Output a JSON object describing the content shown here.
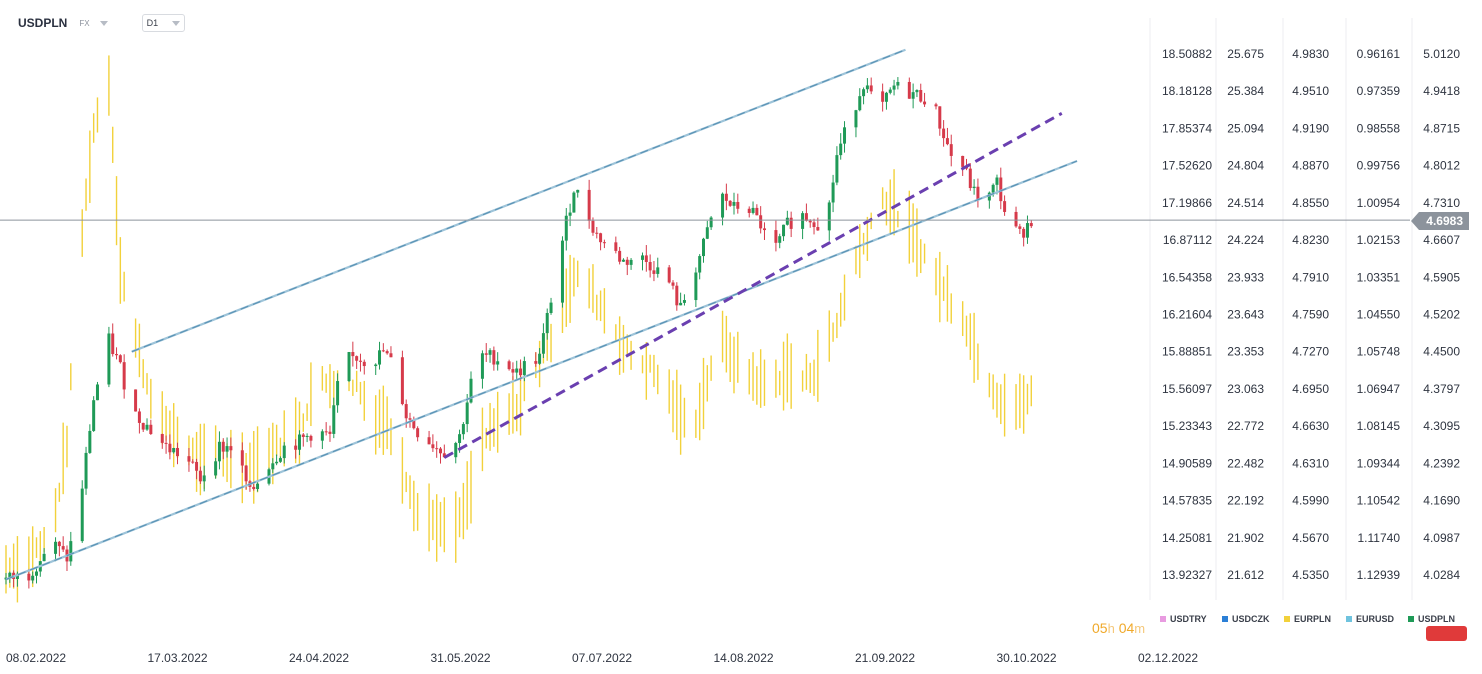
{
  "header": {
    "symbol": "USDPLN",
    "exchange": "FX",
    "timeframe": "D1"
  },
  "current_price_label": "4.6983",
  "countdown": {
    "hours": "05",
    "h": "h",
    "minutes": "04",
    "m": "m"
  },
  "legend": [
    {
      "label": "USDTRY",
      "color": "#e89be0"
    },
    {
      "label": "USDCZK",
      "color": "#2b7fd6"
    },
    {
      "label": "EURPLN",
      "color": "#f2d13b"
    },
    {
      "label": "EURUSD",
      "color": "#6fc3de"
    },
    {
      "label": "USDPLN",
      "color": "#1f9a57"
    }
  ],
  "colors": {
    "up": "#1f9a57",
    "down": "#d63a4a",
    "eurpln": "#f2d13b",
    "channel": "#5b93b5",
    "trend": "#6a3fb0",
    "current_line": "#8c939c"
  },
  "chart_data": {
    "type": "candlestick",
    "x_tick_labels": [
      "08.02.2022",
      "17.03.2022",
      "24.04.2022",
      "31.05.2022",
      "07.07.2022",
      "14.08.2022",
      "21.09.2022",
      "30.10.2022",
      "02.12.2022"
    ],
    "price_scales": [
      {
        "name": "USDTRY",
        "ticks": [
          "18.50882",
          "18.18128",
          "17.85374",
          "17.52620",
          "17.19866",
          "16.87112",
          "16.54358",
          "16.21604",
          "15.88851",
          "15.56097",
          "15.23343",
          "14.90589",
          "14.57835",
          "14.25081",
          "13.92327"
        ]
      },
      {
        "name": "USDCZK",
        "ticks": [
          "25.675",
          "25.384",
          "25.094",
          "24.804",
          "24.514",
          "24.224",
          "23.933",
          "23.643",
          "23.353",
          "23.063",
          "22.772",
          "22.482",
          "22.192",
          "21.902",
          "21.612"
        ]
      },
      {
        "name": "EURPLN",
        "ticks": [
          "4.9830",
          "4.9510",
          "4.9190",
          "4.8870",
          "4.8550",
          "4.8230",
          "4.7910",
          "4.7590",
          "4.7270",
          "4.6950",
          "4.6630",
          "4.6310",
          "4.5990",
          "4.5670",
          "4.5350"
        ]
      },
      {
        "name": "EURUSD",
        "ticks": [
          "0.96161",
          "0.97359",
          "0.98558",
          "0.99756",
          "1.00954",
          "1.02153",
          "1.03351",
          "1.04550",
          "1.05748",
          "1.06947",
          "1.08145",
          "1.09344",
          "1.10542",
          "1.11740",
          "1.12939"
        ]
      },
      {
        "name": "USDPLN",
        "ticks": [
          "5.0120",
          "4.9418",
          "4.8715",
          "4.8012",
          "4.7310",
          "4.6607",
          "4.5905",
          "4.5202",
          "4.4500",
          "4.3797",
          "4.3095",
          "4.2392",
          "4.1690",
          "4.0987",
          "4.0284"
        ]
      }
    ],
    "usdpln_ylim": [
      4.0284,
      5.012
    ],
    "eurpln_ylim": [
      4.535,
      4.983
    ],
    "current_price": 4.6983,
    "usdpln_path": [
      [
        "2022-02-08",
        4.02
      ],
      [
        "2022-02-14",
        4.03
      ],
      [
        "2022-02-20",
        4.09
      ],
      [
        "2022-02-24",
        4.06
      ],
      [
        "2022-02-27",
        4.14
      ],
      [
        "2022-03-03",
        4.36
      ],
      [
        "2022-03-07",
        4.47
      ],
      [
        "2022-03-10",
        4.42
      ],
      [
        "2022-03-13",
        4.34
      ],
      [
        "2022-03-17",
        4.31
      ],
      [
        "2022-03-22",
        4.27
      ],
      [
        "2022-03-27",
        4.25
      ],
      [
        "2022-03-31",
        4.21
      ],
      [
        "2022-04-05",
        4.27
      ],
      [
        "2022-04-09",
        4.27
      ],
      [
        "2022-04-13",
        4.18
      ],
      [
        "2022-04-17",
        4.23
      ],
      [
        "2022-04-22",
        4.27
      ],
      [
        "2022-04-26",
        4.28
      ],
      [
        "2022-04-30",
        4.3
      ],
      [
        "2022-05-04",
        4.29
      ],
      [
        "2022-05-07",
        4.43
      ],
      [
        "2022-05-11",
        4.44
      ],
      [
        "2022-05-15",
        4.43
      ],
      [
        "2022-05-18",
        4.45
      ],
      [
        "2022-05-21",
        4.42
      ],
      [
        "2022-05-24",
        4.33
      ],
      [
        "2022-05-27",
        4.3
      ],
      [
        "2022-06-01",
        4.27
      ],
      [
        "2022-06-04",
        4.26
      ],
      [
        "2022-06-07",
        4.29
      ],
      [
        "2022-06-10",
        4.39
      ],
      [
        "2022-06-13",
        4.44
      ],
      [
        "2022-06-16",
        4.44
      ],
      [
        "2022-06-19",
        4.43
      ],
      [
        "2022-06-22",
        4.41
      ],
      [
        "2022-06-25",
        4.43
      ],
      [
        "2022-06-28",
        4.44
      ],
      [
        "2022-07-01",
        4.55
      ],
      [
        "2022-07-04",
        4.66
      ],
      [
        "2022-07-07",
        4.76
      ],
      [
        "2022-07-10",
        4.72
      ],
      [
        "2022-07-13",
        4.67
      ],
      [
        "2022-07-16",
        4.65
      ],
      [
        "2022-07-20",
        4.62
      ],
      [
        "2022-07-24",
        4.63
      ],
      [
        "2022-07-28",
        4.61
      ],
      [
        "2022-08-01",
        4.58
      ],
      [
        "2022-08-04",
        4.53
      ],
      [
        "2022-08-07",
        4.59
      ],
      [
        "2022-08-10",
        4.65
      ],
      [
        "2022-08-14",
        4.75
      ],
      [
        "2022-08-18",
        4.72
      ],
      [
        "2022-08-21",
        4.73
      ],
      [
        "2022-08-25",
        4.69
      ],
      [
        "2022-08-28",
        4.63
      ],
      [
        "2022-09-01",
        4.69
      ],
      [
        "2022-09-04",
        4.71
      ],
      [
        "2022-09-08",
        4.7
      ],
      [
        "2022-09-11",
        4.68
      ],
      [
        "2022-09-14",
        4.82
      ],
      [
        "2022-09-17",
        4.88
      ],
      [
        "2022-09-21",
        4.96
      ],
      [
        "2022-09-25",
        4.9
      ],
      [
        "2022-09-29",
        4.95
      ],
      [
        "2022-10-03",
        4.94
      ],
      [
        "2022-10-07",
        4.93
      ],
      [
        "2022-10-10",
        4.9
      ],
      [
        "2022-10-14",
        4.82
      ],
      [
        "2022-10-17",
        4.8
      ],
      [
        "2022-10-20",
        4.75
      ],
      [
        "2022-10-23",
        4.73
      ],
      [
        "2022-10-26",
        4.77
      ],
      [
        "2022-10-29",
        4.69
      ],
      [
        "2022-11-01",
        4.67
      ],
      [
        "2022-11-04",
        4.7
      ]
    ],
    "eurpln_path": [
      [
        "2022-02-08",
        4.54
      ],
      [
        "2022-02-14",
        4.55
      ],
      [
        "2022-02-20",
        4.57
      ],
      [
        "2022-02-24",
        4.65
      ],
      [
        "2022-02-27",
        4.8
      ],
      [
        "2022-03-03",
        4.92
      ],
      [
        "2022-03-07",
        4.96
      ],
      [
        "2022-03-10",
        4.8
      ],
      [
        "2022-03-13",
        4.75
      ],
      [
        "2022-03-17",
        4.7
      ],
      [
        "2022-03-22",
        4.66
      ],
      [
        "2022-03-27",
        4.65
      ],
      [
        "2022-03-31",
        4.63
      ],
      [
        "2022-04-05",
        4.64
      ],
      [
        "2022-04-09",
        4.63
      ],
      [
        "2022-04-13",
        4.63
      ],
      [
        "2022-04-17",
        4.64
      ],
      [
        "2022-04-22",
        4.65
      ],
      [
        "2022-04-26",
        4.66
      ],
      [
        "2022-04-30",
        4.7
      ],
      [
        "2022-05-04",
        4.7
      ],
      [
        "2022-05-07",
        4.7
      ],
      [
        "2022-05-11",
        4.7
      ],
      [
        "2022-05-15",
        4.67
      ],
      [
        "2022-05-18",
        4.67
      ],
      [
        "2022-05-21",
        4.65
      ],
      [
        "2022-05-24",
        4.62
      ],
      [
        "2022-05-27",
        4.59
      ],
      [
        "2022-06-01",
        4.58
      ],
      [
        "2022-06-04",
        4.57
      ],
      [
        "2022-06-07",
        4.58
      ],
      [
        "2022-06-10",
        4.61
      ],
      [
        "2022-06-13",
        4.65
      ],
      [
        "2022-06-16",
        4.66
      ],
      [
        "2022-06-19",
        4.67
      ],
      [
        "2022-06-22",
        4.68
      ],
      [
        "2022-06-25",
        4.7
      ],
      [
        "2022-06-28",
        4.72
      ],
      [
        "2022-07-01",
        4.74
      ],
      [
        "2022-07-04",
        4.77
      ],
      [
        "2022-07-07",
        4.79
      ],
      [
        "2022-07-10",
        4.79
      ],
      [
        "2022-07-13",
        4.77
      ],
      [
        "2022-07-16",
        4.76
      ],
      [
        "2022-07-20",
        4.73
      ],
      [
        "2022-07-24",
        4.72
      ],
      [
        "2022-07-28",
        4.71
      ],
      [
        "2022-08-01",
        4.69
      ],
      [
        "2022-08-04",
        4.67
      ],
      [
        "2022-08-07",
        4.66
      ],
      [
        "2022-08-10",
        4.69
      ],
      [
        "2022-08-14",
        4.74
      ],
      [
        "2022-08-18",
        4.72
      ],
      [
        "2022-08-21",
        4.71
      ],
      [
        "2022-08-25",
        4.7
      ],
      [
        "2022-08-28",
        4.7
      ],
      [
        "2022-09-01",
        4.71
      ],
      [
        "2022-09-04",
        4.7
      ],
      [
        "2022-09-08",
        4.71
      ],
      [
        "2022-09-11",
        4.73
      ],
      [
        "2022-09-14",
        4.75
      ],
      [
        "2022-09-17",
        4.79
      ],
      [
        "2022-09-21",
        4.82
      ],
      [
        "2022-09-25",
        4.86
      ],
      [
        "2022-09-29",
        4.85
      ],
      [
        "2022-10-03",
        4.83
      ],
      [
        "2022-10-07",
        4.81
      ],
      [
        "2022-10-10",
        4.79
      ],
      [
        "2022-10-14",
        4.77
      ],
      [
        "2022-10-17",
        4.76
      ],
      [
        "2022-10-20",
        4.73
      ],
      [
        "2022-10-23",
        4.71
      ],
      [
        "2022-10-26",
        4.69
      ],
      [
        "2022-10-29",
        4.68
      ],
      [
        "2022-11-01",
        4.68
      ],
      [
        "2022-11-04",
        4.69
      ]
    ],
    "channel_lines": [
      {
        "from": [
          "2022-02-08",
          4.02
        ],
        "to": [
          "2022-11-16",
          4.81
        ]
      },
      {
        "from": [
          "2022-03-13",
          4.45
        ],
        "to": [
          "2022-10-02",
          5.02
        ]
      }
    ],
    "trend_line": {
      "from": [
        "2022-06-03",
        4.25
      ],
      "to": [
        "2022-11-12",
        4.9
      ]
    },
    "title": "",
    "xlabel": "",
    "ylabel": "",
    "grid": false,
    "legend_position": "bottom-right"
  }
}
